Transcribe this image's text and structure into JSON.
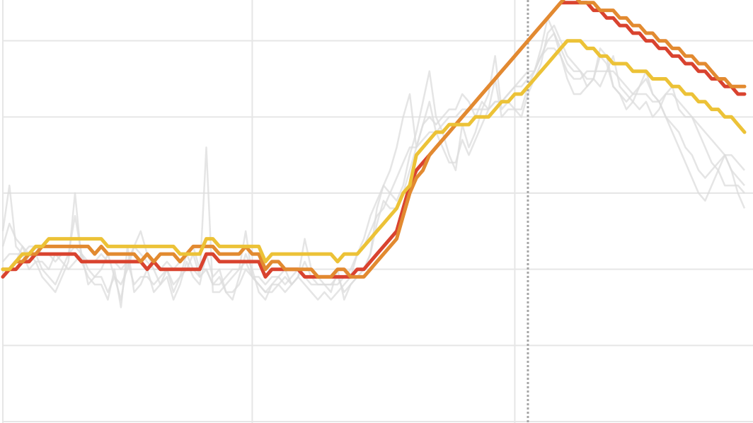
{
  "chart_data": {
    "type": "line",
    "title": "",
    "xlabel": "",
    "ylabel": "",
    "legend": "none",
    "grid": true,
    "has_reference_line": true,
    "colors": {
      "grid": "#e6e6e6",
      "reference_line": "#a6a6a6",
      "background_series": "#dcdcdc",
      "highlight": [
        "#d9432f",
        "#e28a30",
        "#ecc237"
      ]
    },
    "ylim": [
      0,
      6
    ],
    "xlim": [
      0,
      113
    ],
    "reference_x": 80,
    "background_series": [
      {
        "values": [
          2.5,
          3.1,
          2.3,
          2.2,
          2.0,
          2.1,
          1.9,
          1.8,
          1.7,
          1.9,
          2.1,
          3.0,
          2.1,
          1.9,
          1.8,
          1.8,
          1.6,
          2.0,
          1.5,
          2.3,
          1.7,
          1.8,
          2.0,
          1.7,
          1.8,
          1.9,
          1.6,
          1.8,
          2.1,
          1.9,
          1.8,
          2.2,
          1.9,
          2.0,
          1.7,
          1.6,
          1.9,
          2.2,
          2.0,
          1.7,
          1.6,
          1.8,
          1.9,
          2.0,
          1.8,
          1.9,
          2.4,
          2.0,
          1.9,
          1.8,
          1.7,
          2.0,
          1.6,
          1.8,
          1.9,
          2.0,
          2.2,
          2.8,
          3.1,
          3.0,
          2.9,
          3.1,
          3.5,
          3.8,
          4.2,
          4.6,
          4.0,
          3.8,
          3.5,
          3.3,
          3.9,
          3.6,
          3.8,
          4.1,
          4.3,
          4.8,
          4.1,
          4.2,
          4.1,
          4.0,
          4.3,
          4.5,
          4.7,
          5.1,
          5.2,
          5.0,
          4.8,
          4.7,
          4.6,
          4.4,
          4.5,
          4.9,
          4.8,
          4.4,
          4.3,
          4.1,
          4.2,
          4.4,
          4.6,
          4.3,
          4.2,
          4.0,
          3.8,
          3.6,
          3.4,
          3.2,
          3.0,
          2.9,
          3.1,
          3.3,
          3.5,
          3.3,
          3.0,
          2.8
        ]
      },
      {
        "values": [
          2.3,
          2.6,
          2.4,
          2.3,
          2.1,
          2.2,
          2.0,
          1.9,
          1.8,
          2.0,
          2.2,
          2.7,
          2.2,
          2.0,
          1.9,
          1.9,
          1.7,
          1.9,
          1.6,
          2.1,
          1.8,
          1.9,
          1.9,
          1.8,
          1.9,
          2.0,
          1.7,
          1.9,
          2.2,
          2.0,
          1.9,
          2.0,
          1.8,
          1.9,
          1.7,
          1.7,
          1.8,
          2.0,
          1.9,
          1.8,
          1.7,
          1.8,
          1.8,
          1.9,
          1.8,
          1.9,
          2.1,
          1.9,
          1.8,
          1.8,
          1.8,
          1.9,
          1.7,
          1.8,
          1.9,
          2.0,
          2.2,
          2.6,
          2.9,
          2.8,
          2.8,
          3.0,
          3.3,
          3.6,
          3.9,
          4.2,
          3.8,
          3.6,
          3.4,
          3.4,
          3.7,
          3.5,
          3.7,
          3.9,
          4.1,
          4.5,
          4.0,
          4.1,
          4.1,
          4.1,
          4.4,
          4.6,
          4.8,
          5.0,
          5.1,
          4.9,
          4.7,
          4.6,
          4.6,
          4.5,
          4.5,
          4.8,
          4.7,
          4.4,
          4.3,
          4.2,
          4.3,
          4.4,
          4.5,
          4.3,
          4.2,
          4.0,
          3.9,
          3.8,
          3.6,
          3.5,
          3.3,
          3.2,
          3.3,
          3.4,
          3.5,
          3.3,
          3.2,
          3.1
        ]
      },
      {
        "values": [
          1.9,
          2.0,
          2.1,
          2.3,
          2.2,
          2.1,
          2.1,
          2.0,
          2.2,
          2.1,
          2.0,
          2.1,
          2.2,
          1.8,
          1.9,
          2.0,
          2.2,
          1.9,
          1.8,
          2.0,
          2.3,
          2.5,
          2.2,
          2.0,
          1.8,
          2.0,
          1.8,
          1.9,
          2.0,
          2.2,
          1.9,
          3.6,
          1.7,
          1.7,
          1.8,
          1.9,
          2.0,
          2.5,
          1.9,
          1.8,
          1.7,
          1.7,
          1.8,
          1.7,
          1.8,
          1.9,
          1.8,
          1.7,
          1.6,
          1.7,
          1.6,
          1.7,
          1.8,
          1.9,
          2.2,
          2.4,
          2.7,
          2.9,
          3.1,
          3.3,
          3.6,
          4.0,
          4.3,
          3.6,
          3.9,
          4.0,
          3.9,
          4.0,
          4.1,
          4.1,
          4.3,
          4.2,
          4.0,
          4.2,
          4.1,
          4.2,
          4.2,
          4.3,
          4.4,
          4.5,
          4.6,
          4.6,
          4.9,
          5.3,
          5.1,
          4.8,
          4.5,
          4.3,
          4.3,
          4.4,
          4.5,
          4.4,
          4.6,
          4.8,
          4.4,
          4.3,
          4.2,
          4.1,
          4.2,
          4.0,
          4.1,
          4.3,
          4.4,
          4.1,
          4.0,
          4.0,
          3.8,
          3.6,
          3.4,
          3.3,
          3.1,
          3.1,
          3.1,
          3.0
        ]
      },
      {
        "values": [
          2.1,
          2.2,
          2.2,
          2.2,
          2.3,
          2.3,
          2.2,
          2.2,
          2.1,
          2.2,
          2.2,
          2.3,
          2.2,
          2.1,
          2.1,
          2.2,
          2.1,
          2.1,
          2.0,
          2.1,
          2.3,
          2.2,
          2.1,
          2.0,
          2.0,
          2.1,
          2.0,
          2.1,
          2.2,
          2.3,
          2.0,
          2.0,
          1.8,
          1.8,
          1.9,
          2.0,
          2.0,
          2.1,
          1.9,
          1.9,
          1.8,
          1.9,
          1.9,
          1.8,
          1.9,
          2.0,
          1.9,
          1.8,
          1.8,
          1.8,
          1.8,
          1.8,
          1.9,
          2.0,
          2.2,
          2.3,
          2.5,
          2.7,
          2.8,
          3.0,
          3.2,
          3.4,
          3.6,
          3.6,
          3.7,
          3.8,
          3.8,
          3.9,
          4.0,
          4.0,
          4.1,
          4.1,
          4.1,
          4.1,
          4.1,
          4.2,
          4.2,
          4.3,
          4.4,
          4.4,
          4.5,
          4.6,
          4.8,
          4.9,
          4.9,
          4.8,
          4.6,
          4.5,
          4.5,
          4.6,
          4.6,
          4.6,
          4.6,
          4.6,
          4.5,
          4.4,
          4.3,
          4.3,
          4.3,
          4.2,
          4.2,
          4.3,
          4.3,
          4.2,
          4.1,
          4.0,
          3.9,
          3.8,
          3.7,
          3.6,
          3.5,
          3.5,
          3.4,
          3.3
        ]
      }
    ],
    "series": [
      {
        "values": [
          1.9,
          2.0,
          2.0,
          2.1,
          2.1,
          2.2,
          2.2,
          2.2,
          2.2,
          2.2,
          2.2,
          2.2,
          2.1,
          2.1,
          2.1,
          2.1,
          2.1,
          2.1,
          2.1,
          2.1,
          2.1,
          2.1,
          2.0,
          2.1,
          2.0,
          2.0,
          2.0,
          2.0,
          2.0,
          2.0,
          2.0,
          2.2,
          2.2,
          2.1,
          2.1,
          2.1,
          2.1,
          2.1,
          2.1,
          2.1,
          1.9,
          2.0,
          2.0,
          2.0,
          2.0,
          2.0,
          1.9,
          1.9,
          1.9,
          1.9,
          1.9,
          1.9,
          1.9,
          1.9,
          2.0,
          2.0,
          2.1,
          2.2,
          2.3,
          2.4,
          2.5,
          2.8,
          3.1,
          3.3,
          3.4,
          3.5,
          3.6,
          3.7,
          3.8,
          3.9,
          4.0,
          4.1,
          4.2,
          4.3,
          4.4,
          4.5,
          4.6,
          4.7,
          4.8,
          4.9,
          5.0,
          5.1,
          5.2,
          5.3,
          5.4,
          5.5,
          5.5,
          5.5,
          5.5,
          5.5,
          5.4,
          5.4,
          5.3,
          5.3,
          5.2,
          5.2,
          5.1,
          5.1,
          5.0,
          5.0,
          4.9,
          4.9,
          4.8,
          4.8,
          4.7,
          4.7,
          4.6,
          4.6,
          4.5,
          4.5,
          4.4,
          4.4,
          4.3,
          4.3
        ]
      },
      {
        "values": [
          2.0,
          2.0,
          2.1,
          2.1,
          2.2,
          2.2,
          2.3,
          2.3,
          2.3,
          2.3,
          2.3,
          2.3,
          2.3,
          2.3,
          2.2,
          2.3,
          2.2,
          2.2,
          2.2,
          2.2,
          2.2,
          2.1,
          2.2,
          2.1,
          2.2,
          2.2,
          2.2,
          2.1,
          2.2,
          2.3,
          2.3,
          2.3,
          2.3,
          2.2,
          2.2,
          2.2,
          2.2,
          2.3,
          2.2,
          2.2,
          2.0,
          2.1,
          2.1,
          2.0,
          2.0,
          2.0,
          2.0,
          2.0,
          1.9,
          1.9,
          1.9,
          2.0,
          2.0,
          1.9,
          1.9,
          1.9,
          2.0,
          2.1,
          2.2,
          2.3,
          2.4,
          2.7,
          3.0,
          3.2,
          3.3,
          3.5,
          3.6,
          3.7,
          3.8,
          3.9,
          4.0,
          4.1,
          4.2,
          4.3,
          4.4,
          4.5,
          4.6,
          4.7,
          4.8,
          4.9,
          5.0,
          5.1,
          5.2,
          5.3,
          5.4,
          5.5,
          5.6,
          5.6,
          5.5,
          5.5,
          5.5,
          5.4,
          5.4,
          5.4,
          5.3,
          5.3,
          5.2,
          5.2,
          5.1,
          5.1,
          5.0,
          5.0,
          4.9,
          4.9,
          4.8,
          4.8,
          4.7,
          4.7,
          4.6,
          4.5,
          4.5,
          4.4,
          4.4,
          4.4
        ]
      },
      {
        "values": [
          2.0,
          2.0,
          2.1,
          2.2,
          2.2,
          2.3,
          2.3,
          2.4,
          2.4,
          2.4,
          2.4,
          2.4,
          2.4,
          2.4,
          2.4,
          2.4,
          2.3,
          2.3,
          2.3,
          2.3,
          2.3,
          2.3,
          2.3,
          2.3,
          2.3,
          2.3,
          2.3,
          2.2,
          2.2,
          2.2,
          2.2,
          2.4,
          2.4,
          2.3,
          2.3,
          2.3,
          2.3,
          2.3,
          2.3,
          2.3,
          2.1,
          2.2,
          2.2,
          2.2,
          2.2,
          2.2,
          2.2,
          2.2,
          2.2,
          2.2,
          2.2,
          2.1,
          2.2,
          2.2,
          2.2,
          2.3,
          2.4,
          2.5,
          2.6,
          2.7,
          2.8,
          3.0,
          3.1,
          3.5,
          3.6,
          3.7,
          3.8,
          3.8,
          3.9,
          3.9,
          3.9,
          3.9,
          4.0,
          4.0,
          4.0,
          4.1,
          4.2,
          4.2,
          4.3,
          4.3,
          4.4,
          4.5,
          4.6,
          4.7,
          4.8,
          4.9,
          5.0,
          5.0,
          5.0,
          4.9,
          4.9,
          4.8,
          4.8,
          4.7,
          4.7,
          4.7,
          4.6,
          4.6,
          4.6,
          4.5,
          4.5,
          4.5,
          4.4,
          4.4,
          4.3,
          4.3,
          4.2,
          4.2,
          4.1,
          4.1,
          4.0,
          4.0,
          3.9,
          3.8
        ]
      }
    ]
  }
}
